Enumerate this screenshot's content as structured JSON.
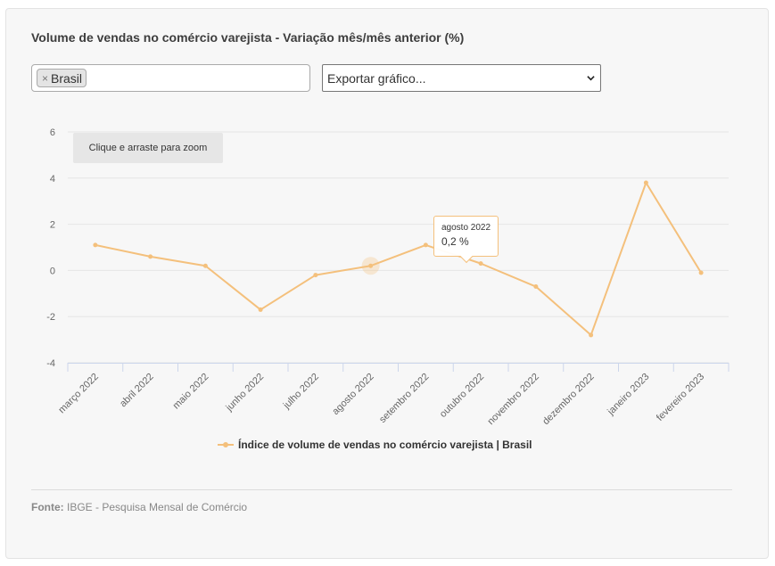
{
  "title": "Volume de vendas no comércio varejista - Variação mês/mês anterior (%)",
  "filter": {
    "tag_label": "Brasil",
    "remove_glyph": "×"
  },
  "export_select": {
    "selected": "Exportar gráfico..."
  },
  "zoom_hint": "Clique e arraste para zoom",
  "tooltip": {
    "date": "agosto 2022",
    "value": "0,2 %"
  },
  "source": {
    "label": "Fonte:",
    "text": "IBGE - Pesquisa Mensal de Comércio"
  },
  "colors": {
    "series": "#f4c07c",
    "grid": "#e6e6e6",
    "axis": "#ccd6eb"
  },
  "chart_data": {
    "type": "line",
    "title": "Volume de vendas no comércio varejista - Variação mês/mês anterior (%)",
    "categories": [
      "março 2022",
      "abril 2022",
      "maio 2022",
      "junho 2022",
      "julho 2022",
      "agosto 2022",
      "setembro 2022",
      "outubro 2022",
      "novembro 2022",
      "dezembro 2022",
      "janeiro 2023",
      "fevereiro 2023"
    ],
    "series": [
      {
        "name": "Índice de volume de vendas no comércio varejista | Brasil",
        "values": [
          1.1,
          0.6,
          0.2,
          -1.7,
          -0.2,
          0.2,
          1.1,
          0.3,
          -0.7,
          -2.8,
          3.8,
          -0.1
        ]
      }
    ],
    "ylim": [
      -4,
      6
    ],
    "yticks": [
      -4,
      -2,
      0,
      2,
      4,
      6
    ],
    "highlight_index": 5,
    "grid": true,
    "legend": "bottom"
  }
}
